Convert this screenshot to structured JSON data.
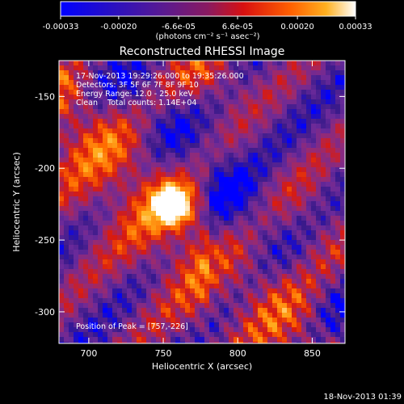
{
  "colorbar": {
    "tick_labels": [
      "-0.00033",
      "-0.00020",
      "-6.6e-05",
      "6.6e-05",
      "0.00020",
      "0.00033"
    ],
    "ticks": [
      -0.00033,
      -0.0002,
      -6.6e-05,
      6.6e-05,
      0.0002,
      0.00033
    ],
    "range": [
      -0.00033,
      0.00033
    ],
    "unit_label": "(photons cm⁻² s⁻¹ asec⁻²)"
  },
  "chart_data": {
    "type": "heatmap",
    "title": "Reconstructed RHESSI Image",
    "xlabel": "Heliocentric X (arcsec)",
    "ylabel": "Heliocentric Y (arcsec)",
    "xlim": [
      680,
      872
    ],
    "ylim": [
      -322,
      -125
    ],
    "x_ticks": [
      700,
      750,
      800,
      850
    ],
    "y_ticks": [
      -150,
      -200,
      -250,
      -300
    ],
    "annotations": [
      "17-Nov-2013 19:29:26.000 to 19:35:26.000",
      "Detectors: 3F 5F 6F 7F 8F 9F 10",
      "Energy Range: 12.0 - 25.0 keV",
      "Clean    Total counts: 1.14E+04"
    ],
    "peak_label": "Position of Peak = [757,-226]",
    "peak": [
      757,
      -226
    ],
    "peak_value": 0.00033,
    "colormap": [
      "#0000ff",
      "#3a1a8a",
      "#6a2a9a",
      "#9a2a70",
      "#d81a10",
      "#ff6a00",
      "#ffb020",
      "#ffffff"
    ]
  },
  "footer": {
    "timestamp": "18-Nov-2013 01:39"
  }
}
